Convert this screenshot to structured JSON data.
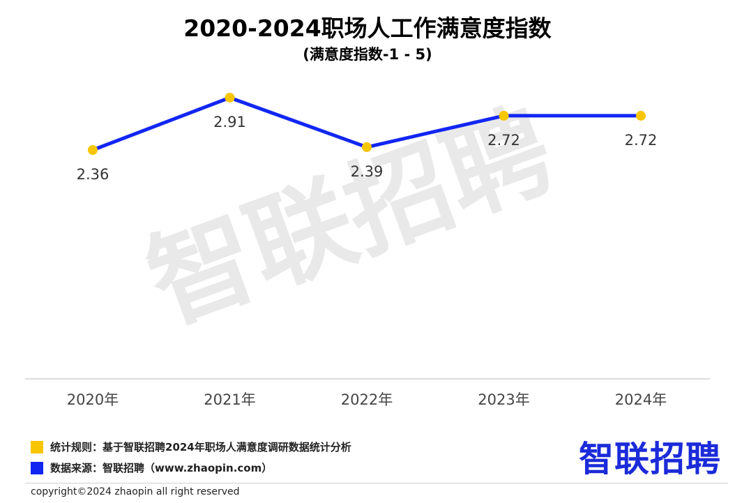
{
  "title": "2020-2024职场人工作满意度指数",
  "subtitle": "(满意度指数-1 - 5)",
  "watermark": "智联招聘",
  "chart_data": {
    "type": "line",
    "title": "2020-2024职场人工作满意度指数",
    "subtitle": "(满意度指数-1 - 5)",
    "categories": [
      "2020年",
      "2021年",
      "2022年",
      "2023年",
      "2024年"
    ],
    "series": [
      {
        "values": [
          2.36,
          2.91,
          2.39,
          2.72,
          2.72
        ],
        "data_labels": [
          "2.36",
          "2.91",
          "2.39",
          "2.72",
          "2.72"
        ]
      }
    ],
    "ylim": [
      1,
      5
    ],
    "grid": false,
    "line_color": "#1226f2",
    "marker_color": "#f7c600"
  },
  "footer": {
    "rule_label": "统计规则：基于智联招聘2024年职场人满意度调研数据统计分析",
    "source_label": "数据来源：智联招聘（www.zhaopin.com）",
    "rule_color": "#f7c600",
    "source_color": "#1226f2"
  },
  "brand": "智联招聘",
  "copyright": "copyright©2024 zhaopin all right reserved"
}
